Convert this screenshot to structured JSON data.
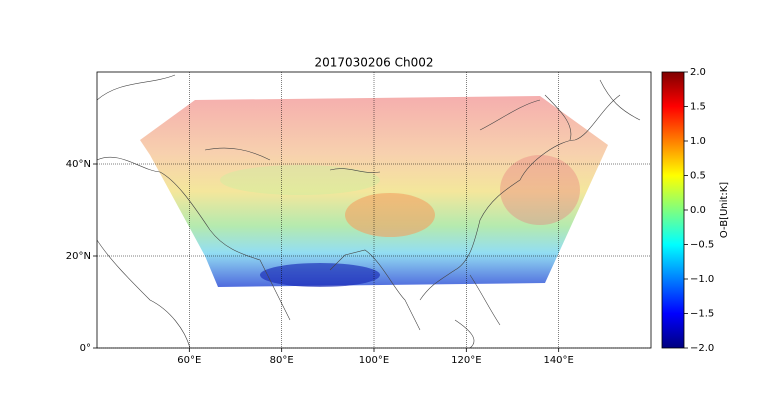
{
  "chart_data": {
    "type": "map",
    "title": "2017030206 Ch002",
    "xlim": [
      40,
      160
    ],
    "xticks": [
      {
        "value": 60,
        "label": "60°E"
      },
      {
        "value": 80,
        "label": "80°E"
      },
      {
        "value": 100,
        "label": "100°E"
      },
      {
        "value": 120,
        "label": "120°E"
      },
      {
        "value": 140,
        "label": "140°E"
      }
    ],
    "ylim": [
      0,
      60
    ],
    "yticks": [
      {
        "value": 0,
        "label": "0°"
      },
      {
        "value": 20,
        "label": "20°N"
      },
      {
        "value": 40,
        "label": "40°N"
      }
    ],
    "grid": true,
    "colorbar": {
      "label": "O-B[Unit:K]",
      "lim": [
        -2,
        2
      ],
      "ticks": [
        {
          "value": -2,
          "label": "−2.0"
        },
        {
          "value": -1.5,
          "label": "−1.5"
        },
        {
          "value": -1,
          "label": "−1.0"
        },
        {
          "value": -0.5,
          "label": "−0.5"
        },
        {
          "value": 0,
          "label": "0.0"
        },
        {
          "value": 0.5,
          "label": "0.5"
        },
        {
          "value": 1,
          "label": "1.0"
        },
        {
          "value": 1.5,
          "label": "1.5"
        },
        {
          "value": 2,
          "label": "2.0"
        }
      ]
    }
  }
}
